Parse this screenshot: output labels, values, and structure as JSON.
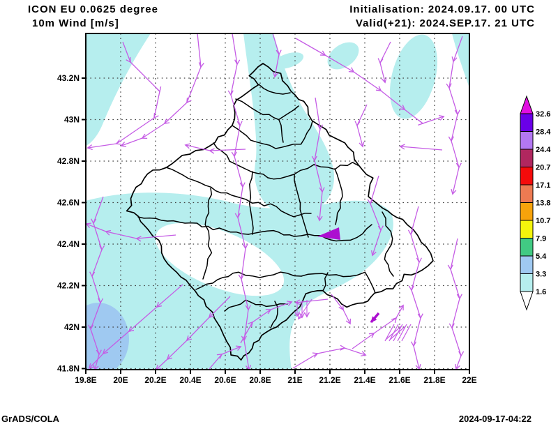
{
  "header": {
    "title_line1": "ICON EU 0.0625 degree",
    "title_line2": "10m Wind [m/s]",
    "init_label": "Initialisation: 2024.09.17. 00 UTC",
    "valid_label": "Valid(+21): 2024.SEP.17. 21 UTC"
  },
  "footer": {
    "credit": "GrADS/COLA",
    "timestamp": "2024-09-17-04:22"
  },
  "axes": {
    "x_ticks": [
      "19.8E",
      "20E",
      "20.2E",
      "20.4E",
      "20.6E",
      "20.8E",
      "21E",
      "21.2E",
      "21.4E",
      "21.6E",
      "21.8E",
      "22E"
    ],
    "y_ticks": [
      "43.2N",
      "43N",
      "42.8N",
      "42.6N",
      "42.4N",
      "42.2N",
      "42N",
      "41.8N"
    ]
  },
  "colorbar": {
    "levels": [
      "32.6",
      "28.4",
      "24.4",
      "20.7",
      "17.1",
      "13.8",
      "10.7",
      "7.9",
      "5.4",
      "3.3",
      "1.6"
    ],
    "colors_top_to_bottom": [
      "#e10fe1",
      "#6a00e8",
      "#b377f2",
      "#b0275f",
      "#f40b0b",
      "#ed7a52",
      "#f7a30b",
      "#f4f40c",
      "#41ca83",
      "#9fc9f1",
      "#b6eeee",
      "#ffffff"
    ]
  },
  "map": {
    "shade_level_1_color": "#b6eeee",
    "shade_level_2_color": "#9fc9f1",
    "vector_color": "#c55ce5",
    "bold_vector_color": "#ac0fd0",
    "border_color": "#000000",
    "grid_color": "#404040"
  },
  "chart_data": {
    "type": "map_vector_field",
    "title": "ICON EU 0.0625 degree",
    "variable": "10m Wind [m/s]",
    "initialisation": "2024.09.17. 00 UTC",
    "valid": "Valid(+21): 2024.SEP.17. 21 UTC",
    "lon_range": [
      19.8,
      22.0
    ],
    "lat_range": [
      41.8,
      43.2
    ],
    "lon_ticks": [
      19.8,
      20.0,
      20.2,
      20.4,
      20.6,
      20.8,
      21.0,
      21.2,
      21.4,
      21.6,
      21.8,
      22.0
    ],
    "lat_ticks": [
      41.8,
      42.0,
      42.2,
      42.4,
      42.6,
      42.8,
      43.0,
      43.2
    ],
    "colorbar_levels_ms": [
      1.6,
      3.3,
      5.4,
      7.9,
      10.7,
      13.8,
      17.1,
      20.7,
      24.4,
      28.4,
      32.6
    ],
    "shading_values_visible_ms": [
      "<1.6 (white)",
      "1.6-3.3 (pale cyan)",
      "3.3-5.4 (light blue)"
    ],
    "grid": true,
    "legend_position": "right"
  }
}
